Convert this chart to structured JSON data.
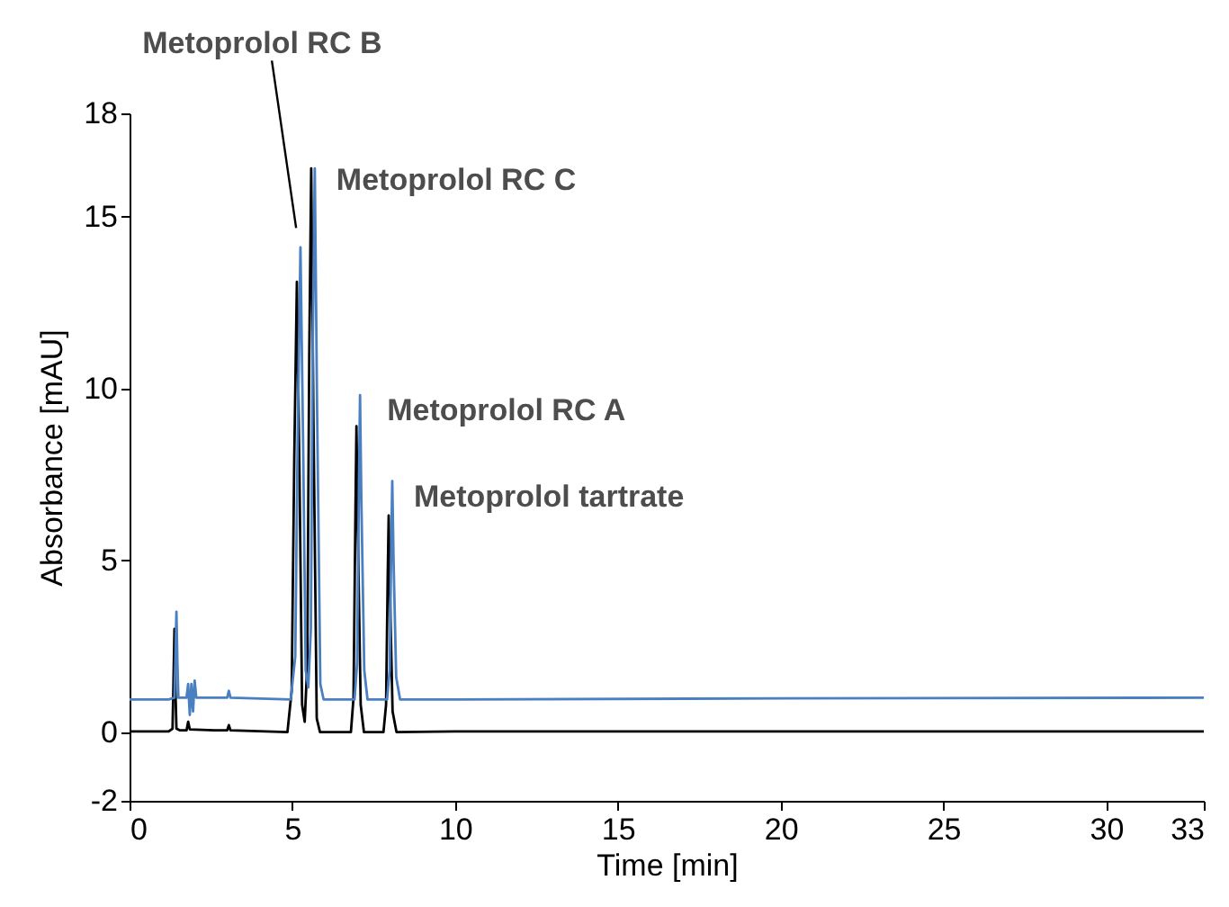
{
  "chart_data": {
    "type": "line",
    "xlabel": "Time [min]",
    "ylabel": "Absorbance [mAU]",
    "xlim": [
      0,
      33
    ],
    "xticks": [
      0,
      5,
      10,
      15,
      20,
      25,
      30,
      33
    ],
    "ylim": [
      -2,
      18
    ],
    "yticks": [
      -2,
      0,
      5,
      10,
      15,
      18
    ],
    "grid": false,
    "marker": "none",
    "line_style": "solid",
    "series": [
      {
        "color": "#000000",
        "x": [
          0,
          1.2,
          1.32,
          1.35,
          1.38,
          1.41,
          1.44,
          1.55,
          1.75,
          1.8,
          1.85,
          2.6,
          3.0,
          3.05,
          3.1,
          4.85,
          4.98,
          5.06,
          5.14,
          5.22,
          5.3,
          5.38,
          5.46,
          5.52,
          5.58,
          5.65,
          5.75,
          5.85,
          6.8,
          6.88,
          6.94,
          6.97,
          7.01,
          7.1,
          7.2,
          7.8,
          7.88,
          7.93,
          7.96,
          8.0,
          8.08,
          8.2,
          10,
          20,
          33
        ],
        "values": [
          0.02,
          0.02,
          0.1,
          1.5,
          3.0,
          1.2,
          0.1,
          0.05,
          0.05,
          0.3,
          0.08,
          0.05,
          0.05,
          0.2,
          0.05,
          0,
          1.2,
          8.0,
          13.1,
          7.5,
          0.8,
          0.3,
          2.0,
          11.0,
          16.4,
          9.0,
          0.4,
          0,
          0,
          1.0,
          6.5,
          8.9,
          6.0,
          0.8,
          0,
          0,
          0.8,
          4.5,
          6.3,
          4.0,
          0.6,
          0,
          0.02,
          0.02,
          0.02
        ]
      },
      {
        "color": "#4a7fc1",
        "x": [
          0,
          1.2,
          1.38,
          1.41,
          1.44,
          1.47,
          1.5,
          1.75,
          1.8,
          1.85,
          1.9,
          1.95,
          2.0,
          2.05,
          3.0,
          3.05,
          3.1,
          4.95,
          5.09,
          5.17,
          5.25,
          5.33,
          5.41,
          5.49,
          5.57,
          5.63,
          5.69,
          5.76,
          5.86,
          5.96,
          6.91,
          6.99,
          7.05,
          7.08,
          7.12,
          7.21,
          7.31,
          7.91,
          7.99,
          8.04,
          8.07,
          8.11,
          8.19,
          8.31,
          10,
          20,
          33
        ],
        "values": [
          0.95,
          0.95,
          1.0,
          2.2,
          3.5,
          2.0,
          1.0,
          1.0,
          1.4,
          0.5,
          1.4,
          0.6,
          1.5,
          1.0,
          1.0,
          1.2,
          1.0,
          0.95,
          2.2,
          9.0,
          14.1,
          8.5,
          1.8,
          1.3,
          3.0,
          11.5,
          16.4,
          9.5,
          1.4,
          0.95,
          0.95,
          2.0,
          7.5,
          9.8,
          6.8,
          1.8,
          0.95,
          0.95,
          1.8,
          5.5,
          7.3,
          5.0,
          1.6,
          0.95,
          0.95,
          0.98,
          1.0
        ]
      }
    ],
    "annotations": [
      {
        "text": "Metoprolol RC B",
        "x": 5.2,
        "y": 14.3
      },
      {
        "text": "Metoprolol RC C",
        "x": 5.69,
        "y": 16.4
      },
      {
        "text": "Metoprolol RC A",
        "x": 7.08,
        "y": 9.8
      },
      {
        "text": "Metoprolol tartrate",
        "x": 8.07,
        "y": 7.3
      }
    ]
  }
}
